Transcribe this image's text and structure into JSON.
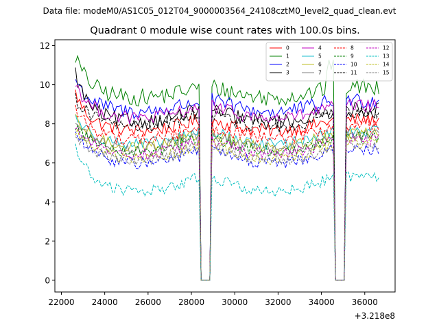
{
  "header": "Data file: modeM0/AS1C05_012T04_9000003564_24108cztM0_level2_quad_clean.evt",
  "chart_data": {
    "type": "line",
    "title": "Quadrant 0 module wise count rates with 100.0s bins.",
    "xlabel": "",
    "ylabel": "",
    "x_offset_label": "+3.218e8",
    "x_range": [
      22650,
      36650
    ],
    "xlim": [
      21700,
      37400
    ],
    "ylim": [
      -0.6,
      12.3
    ],
    "x_ticks": [
      22000,
      24000,
      26000,
      28000,
      30000,
      32000,
      34000,
      36000
    ],
    "x_tick_labels": [
      "22000",
      "24000",
      "26000",
      "28000",
      "30000",
      "32000",
      "34000",
      "36000"
    ],
    "y_ticks": [
      0,
      2,
      4,
      6,
      8,
      10,
      12
    ],
    "y_tick_labels": [
      "0",
      "2",
      "4",
      "6",
      "8",
      "10",
      "12"
    ],
    "bin_seconds": 100,
    "gaps": [
      [
        28450,
        28850
      ],
      [
        34650,
        35050
      ]
    ],
    "legend_position": "top-right",
    "series": [
      {
        "name": "0",
        "color": "#ff0000",
        "dash": "solid",
        "level": 8.2,
        "start": 9.6,
        "noise": 0.35
      },
      {
        "name": "1",
        "color": "#008000",
        "dash": "solid",
        "level": 9.9,
        "start": 11.5,
        "noise": 0.45
      },
      {
        "name": "2",
        "color": "#0000ff",
        "dash": "solid",
        "level": 9.2,
        "start": 10.3,
        "noise": 0.4
      },
      {
        "name": "3",
        "color": "#000000",
        "dash": "solid",
        "level": 8.7,
        "start": 10.6,
        "noise": 0.4
      },
      {
        "name": "4",
        "color": "#bf00bf",
        "dash": "solid",
        "level": 8.9,
        "start": 10.1,
        "noise": 0.35
      },
      {
        "name": "5",
        "color": "#17becf",
        "dash": "solid",
        "level": 7.6,
        "start": 8.4,
        "noise": 0.3
      },
      {
        "name": "6",
        "color": "#bcbd22",
        "dash": "solid",
        "level": 7.5,
        "start": 8.2,
        "noise": 0.3
      },
      {
        "name": "7",
        "color": "#7f7f7f",
        "dash": "solid",
        "level": 7.4,
        "start": 8.1,
        "noise": 0.3
      },
      {
        "name": "8",
        "color": "#ff0000",
        "dash": "dashed",
        "level": 7.9,
        "start": 8.8,
        "noise": 0.35
      },
      {
        "name": "9",
        "color": "#008000",
        "dash": "dashed",
        "level": 7.3,
        "start": 7.9,
        "noise": 0.3
      },
      {
        "name": "10",
        "color": "#0000ff",
        "dash": "dashed",
        "level": 6.7,
        "start": 7.6,
        "noise": 0.3
      },
      {
        "name": "11",
        "color": "#000000",
        "dash": "dashed",
        "level": 8.6,
        "start": 9.3,
        "noise": 0.35
      },
      {
        "name": "12",
        "color": "#bf00bf",
        "dash": "dashed",
        "level": 7.2,
        "start": 7.9,
        "noise": 0.3
      },
      {
        "name": "13",
        "color": "#00bfbf",
        "dash": "dashed",
        "level": 5.3,
        "start": 6.9,
        "noise": 0.3
      },
      {
        "name": "14",
        "color": "#bcbd22",
        "dash": "dashed",
        "level": 7.0,
        "start": 7.7,
        "noise": 0.3
      },
      {
        "name": "15",
        "color": "#7f7f7f",
        "dash": "dashed",
        "level": 6.9,
        "start": 7.4,
        "noise": 0.3
      }
    ]
  }
}
